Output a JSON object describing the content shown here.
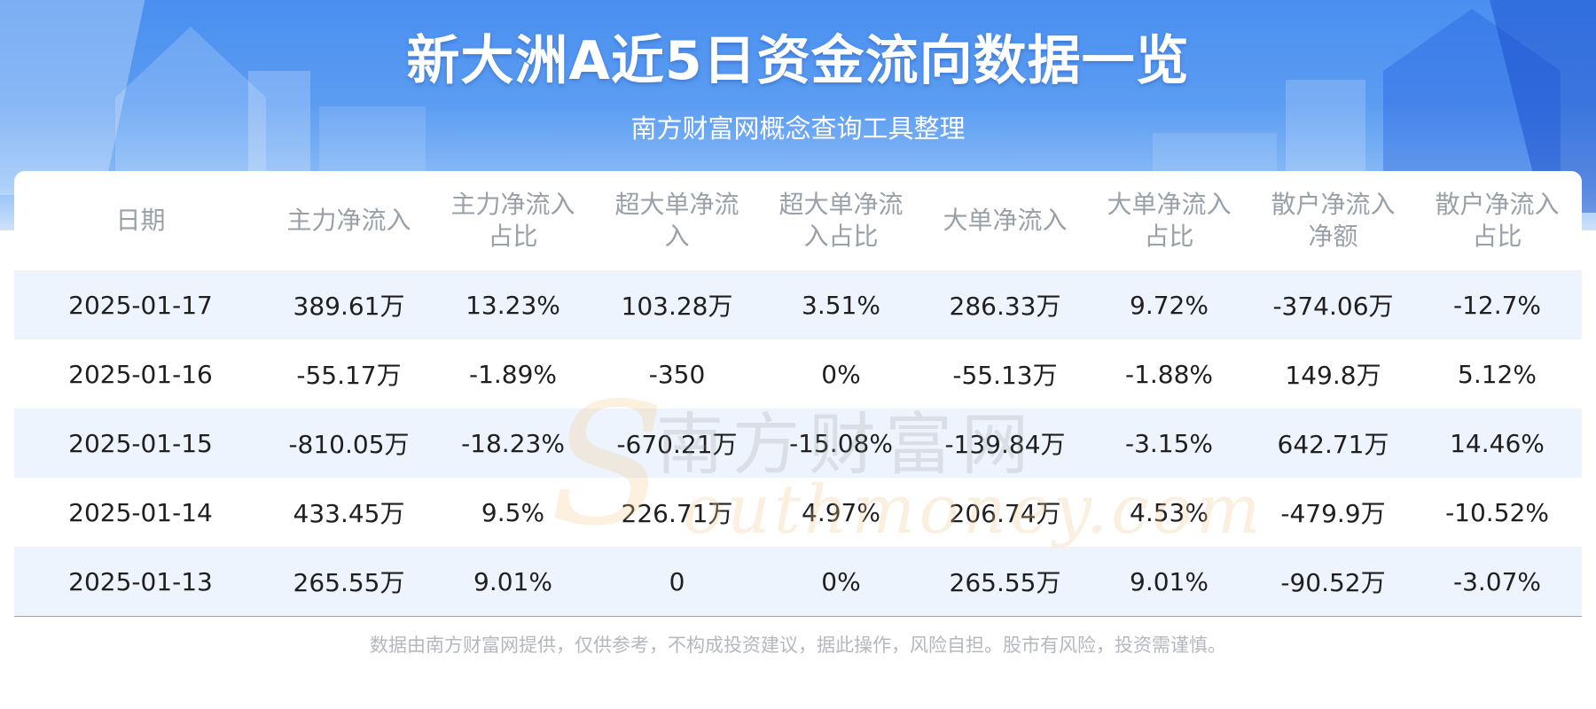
{
  "header": {
    "title": "新大洲A近5日资金流向数据一览",
    "subtitle": "南方财富网概念查询工具整理"
  },
  "table": {
    "columns": [
      [
        "日期"
      ],
      [
        "主力净流入"
      ],
      [
        "主力净流入",
        "占比"
      ],
      [
        "超大单净流",
        "入"
      ],
      [
        "超大单净流",
        "入占比"
      ],
      [
        "大单净流入"
      ],
      [
        "大单净流入",
        "占比"
      ],
      [
        "散户净流入",
        "净额"
      ],
      [
        "散户净流入",
        "占比"
      ]
    ],
    "rows": [
      [
        "2025-01-17",
        "389.61万",
        "13.23%",
        "103.28万",
        "3.51%",
        "286.33万",
        "9.72%",
        "-374.06万",
        "-12.7%"
      ],
      [
        "2025-01-16",
        "-55.17万",
        "-1.89%",
        "-350",
        "0%",
        "-55.13万",
        "-1.88%",
        "149.8万",
        "5.12%"
      ],
      [
        "2025-01-15",
        "-810.05万",
        "-18.23%",
        "-670.21万",
        "-15.08%",
        "-139.84万",
        "-3.15%",
        "642.71万",
        "14.46%"
      ],
      [
        "2025-01-14",
        "433.45万",
        "9.5%",
        "226.71万",
        "4.97%",
        "206.74万",
        "4.53%",
        "-479.9万",
        "-10.52%"
      ],
      [
        "2025-01-13",
        "265.55万",
        "9.01%",
        "0",
        "0%",
        "265.55万",
        "9.01%",
        "-90.52万",
        "-3.07%"
      ]
    ]
  },
  "watermark": {
    "cn": "南方财富网",
    "en": "outhmoney.com",
    "s": "S"
  },
  "footer": {
    "disclaimer": "数据由南方财富网提供，仅供参考，不构成投资建议，据此操作，风险自担。股市有风险，投资需谨慎。"
  },
  "colors": {
    "banner": "#4a8ff0",
    "row_alt": "#edf4fe",
    "header_text": "#9aa0a8"
  }
}
